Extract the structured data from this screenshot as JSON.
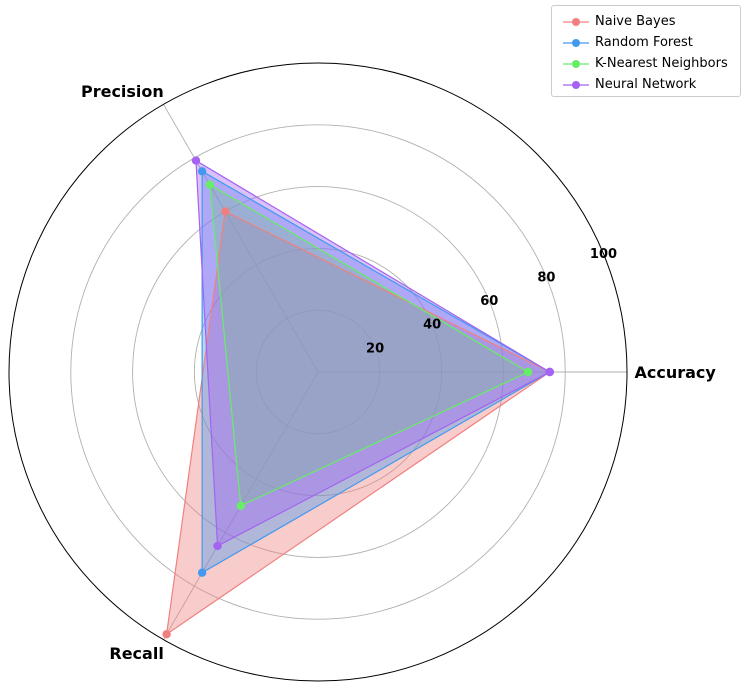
{
  "chart_data": {
    "type": "radar",
    "axes": [
      "Accuracy",
      "Precision",
      "Recall"
    ],
    "radial_ticks": [
      "20",
      "40",
      "60",
      "80",
      "100"
    ],
    "rlim": [
      0,
      100
    ],
    "grid": true,
    "legend_position": "top-right",
    "series": [
      {
        "name": "Naive Bayes",
        "values": [
          75,
          60,
          98
        ],
        "color": "#f08080"
      },
      {
        "name": "Random Forest",
        "values": [
          75,
          75,
          75
        ],
        "color": "#4499ee"
      },
      {
        "name": "K-Nearest Neighbors",
        "values": [
          68,
          70,
          50
        ],
        "color": "#66ee66"
      },
      {
        "name": "Neural Network",
        "values": [
          75,
          79,
          65
        ],
        "color": "#a463f2"
      }
    ]
  }
}
